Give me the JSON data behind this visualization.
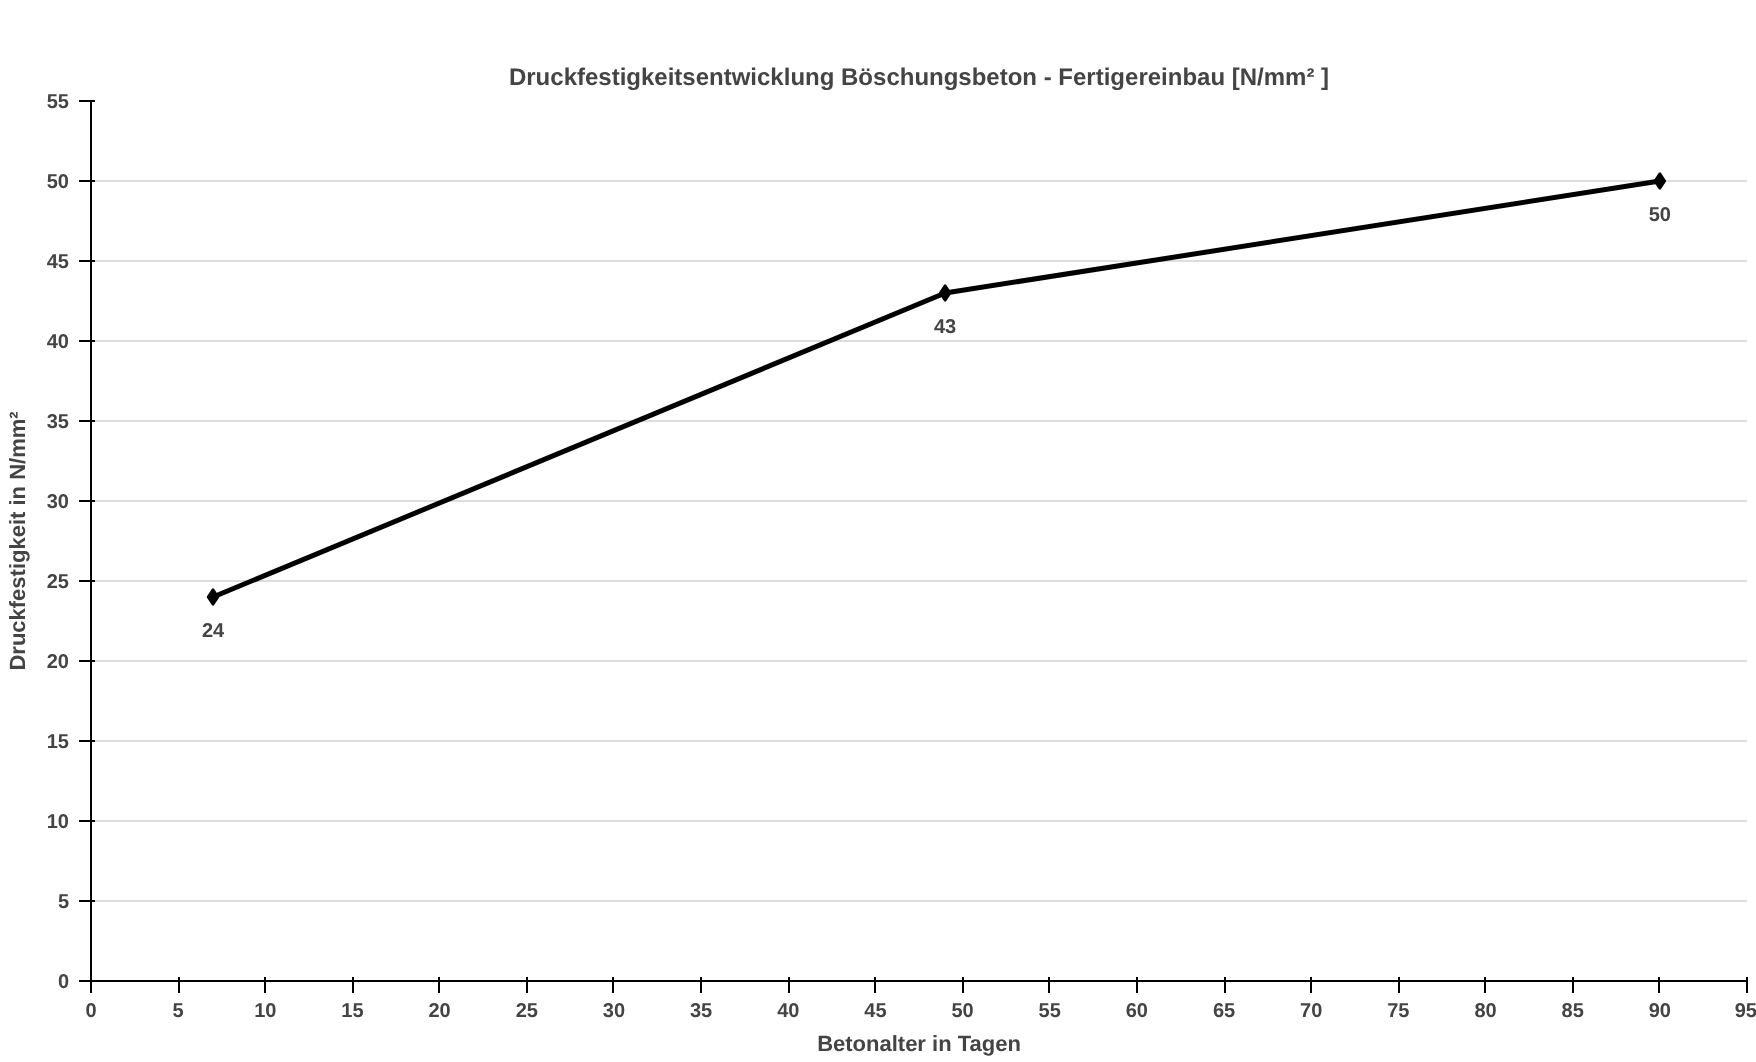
{
  "chart_data": {
    "type": "line",
    "title": "Druckfestigkeitsentwicklung Böschungsbeton - Fertigereinbau [N/mm² ]",
    "xlabel": "Betonalter in Tagen",
    "ylabel": "Druckfestigkeit in N/mm²",
    "x": [
      7,
      49,
      90
    ],
    "series": [
      {
        "color": "#000000",
        "values": [
          24,
          43,
          50
        ]
      }
    ],
    "xlim": [
      0,
      95
    ],
    "xticks": [
      0,
      5,
      10,
      15,
      20,
      25,
      30,
      35,
      40,
      45,
      50,
      55,
      60,
      65,
      70,
      75,
      80,
      85,
      90,
      95
    ],
    "ylim": [
      0,
      55
    ],
    "yticks": [
      0,
      5,
      10,
      15,
      20,
      25,
      30,
      35,
      40,
      45,
      50,
      55
    ],
    "grid": "y",
    "marker": "diamond",
    "line_style": "solid",
    "data_labels": true
  }
}
